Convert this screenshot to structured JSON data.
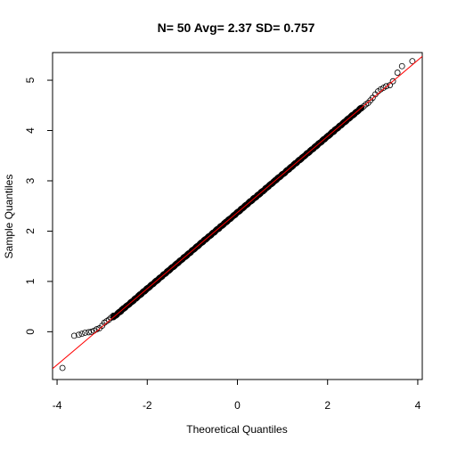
{
  "chart_data": {
    "type": "scatter",
    "title": "N= 50 Avg= 2.37 SD= 0.757",
    "xlabel": "Theoretical Quantiles",
    "ylabel": "Sample Quantiles",
    "xlim": [
      -4.1,
      4.1
    ],
    "ylim": [
      -0.95,
      5.55
    ],
    "x_ticks": [
      "-4",
      "-2",
      "0",
      "2",
      "4"
    ],
    "y_ticks": [
      "0",
      "1",
      "2",
      "3",
      "4",
      "5"
    ],
    "grid": false,
    "reference_line": {
      "intercept": 2.37,
      "slope": 0.757,
      "color": "#ff0000"
    },
    "point_style": {
      "shape": "open-circle",
      "color": "#000000"
    },
    "series": [
      {
        "values": [
          [
            -3.88,
            -0.72
          ],
          [
            -3.62,
            -0.08
          ],
          [
            -3.52,
            -0.06
          ],
          [
            -3.45,
            -0.04
          ],
          [
            -3.38,
            -0.02
          ],
          [
            -3.3,
            -0.01
          ],
          [
            -3.24,
            0.0
          ],
          [
            -3.18,
            0.02
          ],
          [
            -3.12,
            0.05
          ],
          [
            -3.06,
            0.07
          ],
          [
            -3.0,
            0.12
          ],
          [
            -2.95,
            0.18
          ],
          [
            -2.9,
            0.21
          ],
          [
            -2.85,
            0.24
          ],
          [
            -2.8,
            0.28
          ],
          [
            -2.75,
            0.32
          ],
          [
            2.75,
            4.45
          ],
          [
            2.8,
            4.48
          ],
          [
            2.85,
            4.52
          ],
          [
            2.9,
            4.55
          ],
          [
            2.95,
            4.6
          ],
          [
            3.0,
            4.65
          ],
          [
            3.06,
            4.72
          ],
          [
            3.12,
            4.78
          ],
          [
            3.18,
            4.82
          ],
          [
            3.24,
            4.85
          ],
          [
            3.3,
            4.88
          ],
          [
            3.38,
            4.9
          ],
          [
            3.45,
            4.98
          ],
          [
            3.55,
            5.15
          ],
          [
            3.65,
            5.28
          ],
          [
            3.88,
            5.38
          ]
        ],
        "dense_band": {
          "x_range": [
            -2.75,
            2.75
          ],
          "sample_fn": "linear",
          "intercept": 2.37,
          "slope": 0.757
        }
      }
    ]
  }
}
